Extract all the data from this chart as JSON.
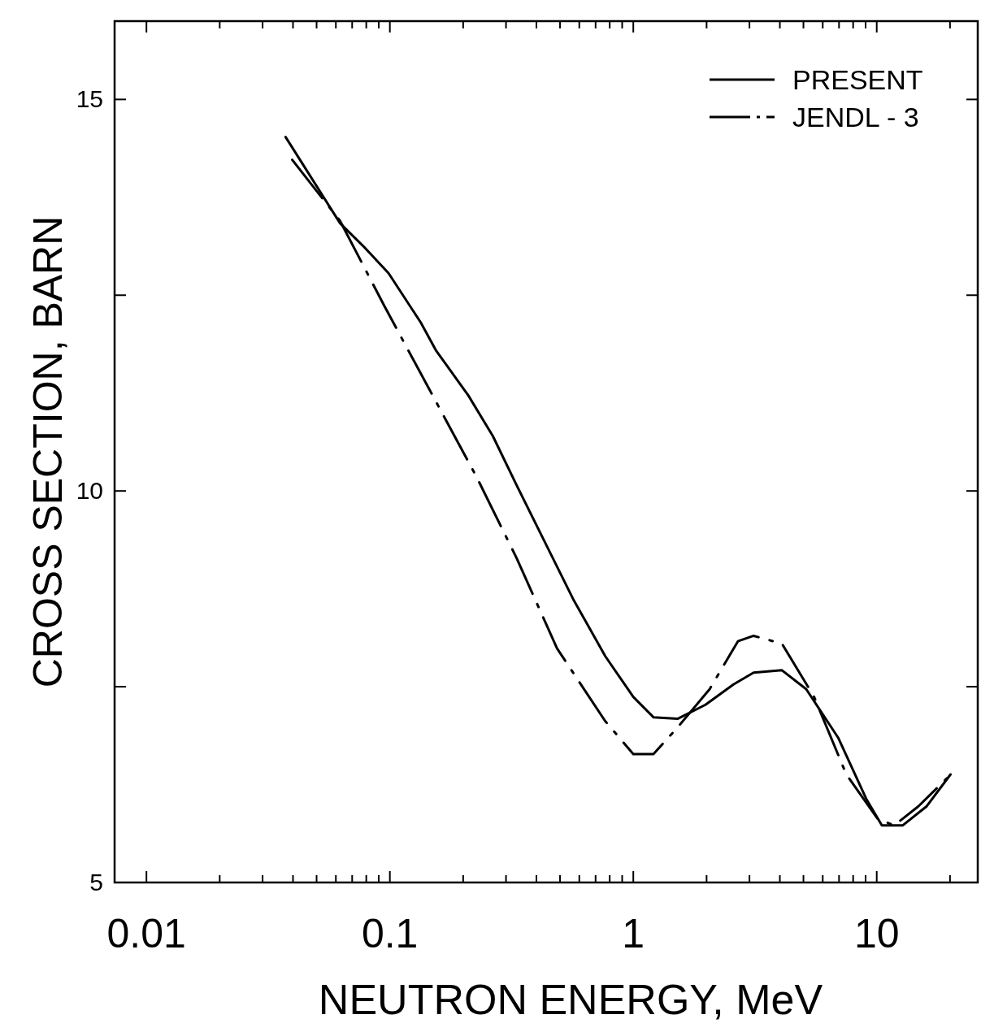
{
  "chart_data": {
    "type": "line",
    "xlabel": "NEUTRON ENERGY, MeV",
    "ylabel": "CROSS SECTION, BARN",
    "log": "x",
    "xlim": [
      0.0074,
      26
    ],
    "ylim": [
      5,
      16
    ],
    "xticks": [
      0.01,
      {
        "value": 0.02,
        "label": null
      },
      {
        "value": 0.03,
        "label": null
      },
      {
        "value": 0.04,
        "label": null
      },
      {
        "value": 0.05,
        "label": null
      },
      {
        "value": 0.06,
        "label": null
      },
      {
        "value": 0.07,
        "label": null
      },
      {
        "value": 0.08,
        "label": null
      },
      {
        "value": 0.09,
        "label": null
      },
      0.1,
      {
        "value": 0.2,
        "label": null
      },
      {
        "value": 0.3,
        "label": null
      },
      {
        "value": 0.4,
        "label": null
      },
      {
        "value": 0.5,
        "label": null
      },
      {
        "value": 0.6,
        "label": null
      },
      {
        "value": 0.7,
        "label": null
      },
      {
        "value": 0.8,
        "label": null
      },
      {
        "value": 0.9,
        "label": null
      },
      1,
      {
        "value": 2,
        "label": null
      },
      {
        "value": 3,
        "label": null
      },
      {
        "value": 4,
        "label": null
      },
      {
        "value": 5,
        "label": null
      },
      {
        "value": 6,
        "label": null
      },
      {
        "value": 7,
        "label": null
      },
      {
        "value": 8,
        "label": null
      },
      {
        "value": 9,
        "label": null
      },
      10,
      {
        "value": 20,
        "label": null
      }
    ],
    "yticks": [
      5,
      {
        "value": 7.5,
        "label": null
      },
      10,
      {
        "value": 12.5,
        "label": null
      },
      15
    ],
    "grid": false,
    "legend": "top right",
    "marker": "none",
    "series": [
      {
        "name": "PRESENT",
        "color": "#000000",
        "line_style": "solid",
        "x": [
          0.0373,
          0.0624,
          0.0787,
          0.0988,
          0.134,
          0.155,
          0.21,
          0.265,
          0.332,
          0.417,
          0.566,
          0.767,
          1.0,
          1.21,
          1.52,
          1.98,
          2.58,
          3.12,
          4.08,
          5.13,
          6.94,
          9.05,
          10.5,
          12.8,
          16.0,
          20.1
        ],
        "values": [
          14.52,
          13.42,
          13.11,
          12.78,
          12.15,
          11.79,
          11.22,
          10.7,
          10.07,
          9.45,
          8.62,
          7.89,
          7.37,
          7.11,
          7.09,
          7.27,
          7.53,
          7.68,
          7.71,
          7.47,
          6.85,
          6.07,
          5.73,
          5.73,
          5.97,
          6.38
        ]
      },
      {
        "name": "JENDL - 3",
        "color": "#000000",
        "line_style": "dashed",
        "x": [
          0.0397,
          0.0624,
          0.095,
          0.144,
          0.227,
          0.332,
          0.486,
          0.767,
          1.0,
          1.21,
          1.52,
          2.06,
          2.69,
          3.12,
          4.08,
          5.53,
          7.5,
          10.1,
          11.8,
          14.8,
          19.4
        ],
        "values": [
          14.23,
          13.45,
          12.36,
          11.32,
          10.18,
          9.14,
          7.99,
          7.06,
          6.64,
          6.64,
          6.98,
          7.47,
          8.08,
          8.15,
          8.05,
          7.37,
          6.38,
          5.81,
          5.73,
          5.97,
          6.33
        ]
      }
    ]
  }
}
